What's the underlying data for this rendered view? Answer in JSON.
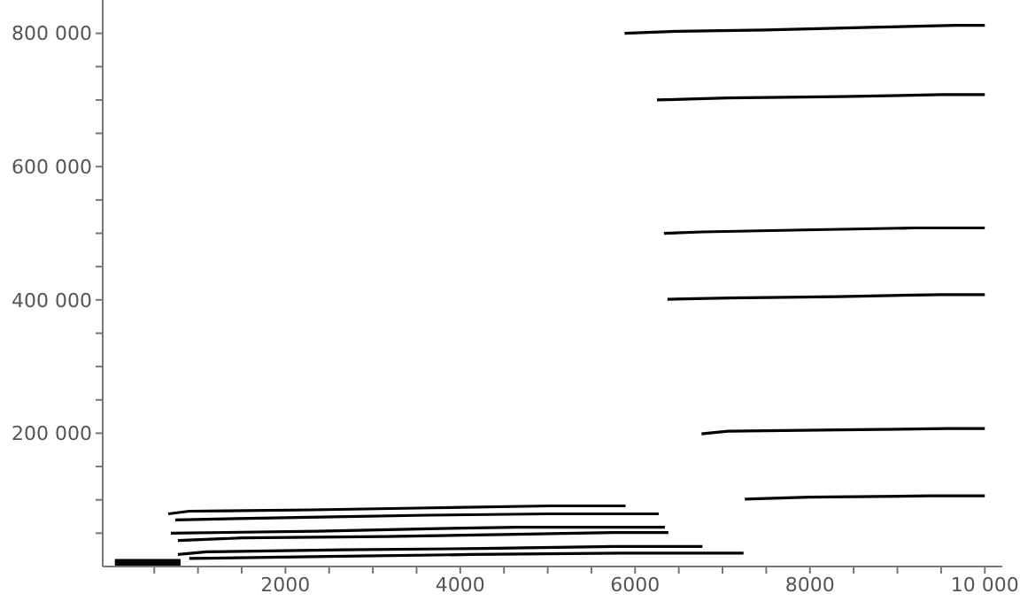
{
  "chart_data": {
    "type": "line",
    "xlim": [
      -90,
      10200
    ],
    "ylim": [
      0,
      850000
    ],
    "xticks": [
      {
        "value": 500,
        "label": null
      },
      {
        "value": 1000,
        "label": null
      },
      {
        "value": 1500,
        "label": null
      },
      2000,
      {
        "value": 2500,
        "label": null
      },
      {
        "value": 3000,
        "label": null
      },
      {
        "value": 3500,
        "label": null
      },
      4000,
      {
        "value": 4500,
        "label": null
      },
      {
        "value": 5000,
        "label": null
      },
      {
        "value": 5500,
        "label": null
      },
      6000,
      {
        "value": 6500,
        "label": null
      },
      {
        "value": 7000,
        "label": null
      },
      {
        "value": 7500,
        "label": null
      },
      8000,
      {
        "value": 8500,
        "label": null
      },
      {
        "value": 9000,
        "label": null
      },
      {
        "value": 9500,
        "label": null
      },
      {
        "value": 10000,
        "label": "10 000"
      }
    ],
    "yticks": [
      {
        "value": 50000,
        "label": null
      },
      {
        "value": 100000,
        "label": null
      },
      {
        "value": 150000,
        "label": null
      },
      {
        "value": 200000,
        "label": "200 000"
      },
      {
        "value": 250000,
        "label": null
      },
      {
        "value": 300000,
        "label": null
      },
      {
        "value": 350000,
        "label": null
      },
      {
        "value": 400000,
        "label": "400 000"
      },
      {
        "value": 450000,
        "label": null
      },
      {
        "value": 500000,
        "label": null
      },
      {
        "value": 550000,
        "label": null
      },
      {
        "value": 600000,
        "label": "600 000"
      },
      {
        "value": 650000,
        "label": null
      },
      {
        "value": 700000,
        "label": null
      },
      {
        "value": 750000,
        "label": null
      },
      {
        "value": 800000,
        "label": "800 000"
      }
    ],
    "grid": false,
    "marker": "none",
    "line_style": "solid",
    "series": [
      {
        "color": "#000000",
        "x": [
          5880,
          6480,
          7490,
          8690,
          9660,
          10000
        ],
        "values": [
          800000,
          803000,
          805000,
          809000,
          812000,
          812000
        ]
      },
      {
        "color": "#000000",
        "x": [
          6250,
          7060,
          8350,
          9520,
          10000
        ],
        "values": [
          700000,
          703000,
          705000,
          708000,
          708000
        ]
      },
      {
        "color": "#000000",
        "x": [
          6330,
          6770,
          7940,
          9190,
          10000
        ],
        "values": [
          500000,
          502000,
          505000,
          508000,
          508000
        ]
      },
      {
        "color": "#000000",
        "x": [
          6370,
          7080,
          8320,
          9510,
          10000
        ],
        "values": [
          401000,
          403000,
          405000,
          408000,
          408000
        ]
      },
      {
        "color": "#000000",
        "x": [
          6760,
          7060,
          8330,
          9580,
          10000
        ],
        "values": [
          199000,
          203000,
          205000,
          207000,
          207000
        ]
      },
      {
        "color": "#000000",
        "x": [
          7255,
          7990,
          9380,
          10000
        ],
        "values": [
          101000,
          104000,
          106000,
          106000
        ]
      },
      {
        "color": "#000000",
        "x": [
          660,
          900,
          2300,
          3660,
          5030,
          5890
        ],
        "values": [
          79000,
          83000,
          85000,
          88000,
          91000,
          91000
        ]
      },
      {
        "color": "#000000",
        "x": [
          740,
          2270,
          3630,
          5000,
          6270
        ],
        "values": [
          70000,
          74000,
          77000,
          79000,
          79000
        ]
      },
      {
        "color": "#000000",
        "x": [
          690,
          2360,
          3760,
          4640,
          6340
        ],
        "values": [
          50000,
          53000,
          57000,
          59000,
          59000
        ]
      },
      {
        "color": "#000000",
        "x": [
          770,
          1520,
          3140,
          4480,
          5750,
          6380
        ],
        "values": [
          39000,
          43000,
          45000,
          48000,
          51000,
          51000
        ]
      },
      {
        "color": "#000000",
        "x": [
          770,
          1100,
          2660,
          4250,
          5750,
          6770
        ],
        "values": [
          18000,
          22000,
          25000,
          27000,
          30000,
          30000
        ]
      },
      {
        "color": "#000000",
        "x": [
          900,
          2490,
          4120,
          5840,
          7240
        ],
        "values": [
          12000,
          15000,
          18000,
          20000,
          20000
        ]
      },
      {
        "color": "#000000",
        "x": [
          50,
          800
        ],
        "values": [
          2000,
          2000
        ]
      },
      {
        "color": "#000000",
        "x": [
          50,
          800
        ],
        "values": [
          5000,
          5000
        ]
      },
      {
        "color": "#000000",
        "x": [
          50,
          800
        ],
        "values": [
          7000,
          7000
        ]
      },
      {
        "color": "#000000",
        "x": [
          50,
          800
        ],
        "values": [
          9000,
          9000
        ]
      }
    ]
  }
}
